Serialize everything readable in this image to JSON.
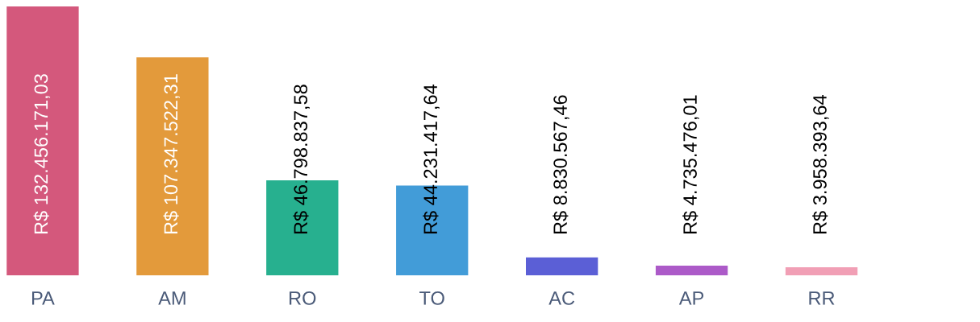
{
  "chart_data": {
    "type": "bar",
    "categories": [
      "PA",
      "AM",
      "RO",
      "TO",
      "AC",
      "AP",
      "RR"
    ],
    "values": [
      132456171.03,
      107347522.31,
      46798837.58,
      44231417.64,
      8830567.46,
      4735476.01,
      3958393.64
    ],
    "colors": [
      "#d4587c",
      "#e39a3b",
      "#27b08f",
      "#429cd8",
      "#5b5fd6",
      "#ac5ac8",
      "#f19fb5"
    ],
    "value_labels": [
      "R$ 132.456.171,03",
      "R$ 107.347.522,31",
      "R$ 46.798.837,58",
      "R$ 44.231.417,64",
      "R$ 8.830.567,46",
      "R$ 4.735.476,01",
      "R$ 3.958.393,64"
    ],
    "grid": false,
    "legend": false
  }
}
